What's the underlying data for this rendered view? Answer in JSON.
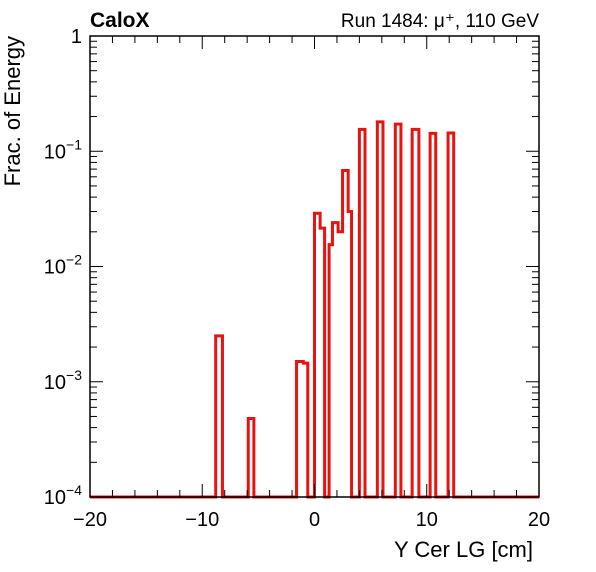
{
  "header": {
    "experiment": "CaloX",
    "run_info": "Run 1484:   μ⁺, 110 GeV"
  },
  "chart_data": {
    "type": "histogram",
    "title": "",
    "xlabel": "Y Cer LG [cm]",
    "ylabel": "Frac. of Energy",
    "xlim": [
      -20,
      20
    ],
    "ylim": [
      0.0001,
      1
    ],
    "yscale": "log",
    "grid": false,
    "legend": "none",
    "line_color": "#e8120e",
    "x_ticks": [
      {
        "value": -20,
        "label": "−20"
      },
      {
        "value": -10,
        "label": "−10"
      },
      {
        "value": 0,
        "label": "0"
      },
      {
        "value": 10,
        "label": "10"
      },
      {
        "value": 20,
        "label": "20"
      }
    ],
    "y_ticks": [
      {
        "value": 1,
        "base": "1",
        "exp": ""
      },
      {
        "value": 0.1,
        "base": "10",
        "exp": "−1"
      },
      {
        "value": 0.01,
        "base": "10",
        "exp": "−2"
      },
      {
        "value": 0.001,
        "base": "10",
        "exp": "−3"
      },
      {
        "value": 0.0001,
        "base": "10",
        "exp": "−4"
      }
    ],
    "bins": [
      {
        "x0": -8.8,
        "x1": -8.2,
        "y": 0.0025
      },
      {
        "x0": -5.9,
        "x1": -5.4,
        "y": 0.00048
      },
      {
        "x0": -1.6,
        "x1": -1.0,
        "y": 0.0015
      },
      {
        "x0": -1.0,
        "x1": -0.6,
        "y": 0.00145
      },
      {
        "x0": 0.0,
        "x1": 0.5,
        "y": 0.029
      },
      {
        "x0": 0.5,
        "x1": 0.9,
        "y": 0.0215
      },
      {
        "x0": 1.3,
        "x1": 1.6,
        "y": 0.0155
      },
      {
        "x0": 1.6,
        "x1": 2.1,
        "y": 0.024
      },
      {
        "x0": 2.1,
        "x1": 2.5,
        "y": 0.02
      },
      {
        "x0": 2.5,
        "x1": 3.0,
        "y": 0.068
      },
      {
        "x0": 3.0,
        "x1": 3.3,
        "y": 0.03
      },
      {
        "x0": 4.0,
        "x1": 4.5,
        "y": 0.155
      },
      {
        "x0": 5.6,
        "x1": 6.1,
        "y": 0.18
      },
      {
        "x0": 7.2,
        "x1": 7.7,
        "y": 0.172
      },
      {
        "x0": 8.7,
        "x1": 9.3,
        "y": 0.155
      },
      {
        "x0": 10.3,
        "x1": 10.8,
        "y": 0.143
      },
      {
        "x0": 11.9,
        "x1": 12.4,
        "y": 0.144
      }
    ]
  }
}
